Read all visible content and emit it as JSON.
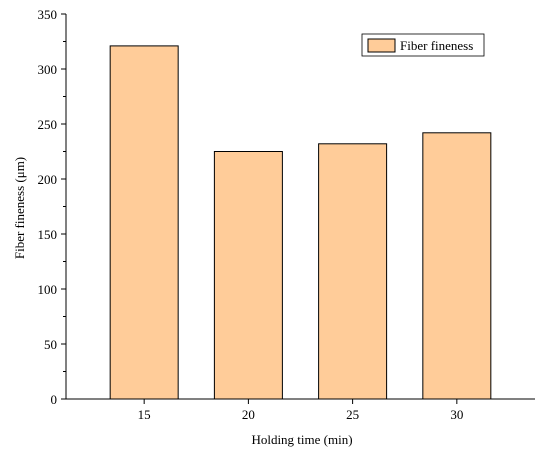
{
  "chart_data": {
    "type": "bar",
    "categories": [
      "15",
      "20",
      "25",
      "30"
    ],
    "series": [
      {
        "name": "Fiber fineness",
        "values": [
          321,
          225,
          232,
          242
        ]
      }
    ],
    "xlabel": "Holding time (min)",
    "ylabel": "Fiber fineness (μm)",
    "ylim": [
      0,
      350
    ],
    "yticks": [
      0,
      50,
      100,
      150,
      200,
      250,
      300,
      350
    ],
    "grid": false,
    "legend_position": "top-right",
    "colors": {
      "bar_fill": "#FFCC99",
      "bar_stroke": "#000000",
      "axis": "#000000"
    }
  }
}
